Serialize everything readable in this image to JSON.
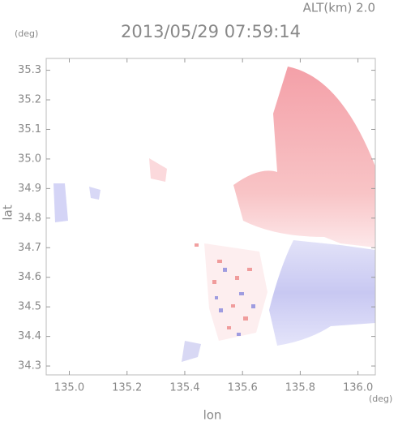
{
  "chart_data": {
    "type": "radar-field",
    "title": "2013/05/29 07:59:14",
    "altitude_label": "ALT(km) 2.0",
    "y_unit": "(deg)",
    "x_unit": "(deg)",
    "xlabel": "lon",
    "ylabel": "lat",
    "xlim": [
      134.92,
      136.06
    ],
    "ylim": [
      34.27,
      35.34
    ],
    "xticks": [
      {
        "value": 135,
        "label": "135.0"
      },
      135.2,
      135.4,
      135.6,
      135.8,
      {
        "value": 136,
        "label": "136.0"
      }
    ],
    "yticks": [
      34.3,
      34.4,
      34.5,
      34.6,
      34.7,
      34.8,
      34.9,
      {
        "value": 35,
        "label": "35.0"
      },
      35.1,
      35.2,
      35.3
    ]
  }
}
